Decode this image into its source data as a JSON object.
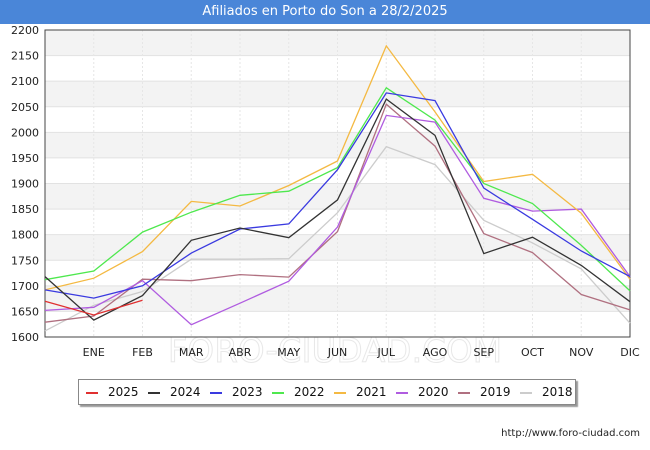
{
  "header": {
    "title": "Afiliados en Porto do Son a 28/2/2025"
  },
  "source": "http://www.foro-ciudad.com",
  "watermark": "FORO-CIUDAD.COM",
  "chart_data": {
    "type": "line",
    "title": "Afiliados en Porto do Son a 28/2/2025",
    "xlabel": "",
    "ylabel": "",
    "categories": [
      "",
      "ENE",
      "FEB",
      "MAR",
      "ABR",
      "MAY",
      "JUN",
      "JUL",
      "AGO",
      "SEP",
      "OCT",
      "NOV",
      "DIC"
    ],
    "ylim": [
      1600,
      2200
    ],
    "yticks": [
      1600,
      1650,
      1700,
      1750,
      1800,
      1850,
      1900,
      1950,
      2000,
      2050,
      2100,
      2150,
      2200
    ],
    "grid": true,
    "legend": "bottom",
    "series": [
      {
        "name": "2025",
        "color": "#e03030",
        "values": [
          1670,
          1643,
          1672,
          null,
          null,
          null,
          null,
          null,
          null,
          null,
          null,
          null,
          null
        ]
      },
      {
        "name": "2024",
        "color": "#333333",
        "values": [
          1718,
          1633,
          1681,
          1789,
          1813,
          1794,
          1868,
          2065,
          1994,
          1763,
          1795,
          1740,
          1669
        ]
      },
      {
        "name": "2023",
        "color": "#3a3ae0",
        "values": [
          1692,
          1676,
          1700,
          1764,
          1811,
          1821,
          1927,
          2077,
          2062,
          1891,
          1830,
          1768,
          1718
        ]
      },
      {
        "name": "2022",
        "color": "#4ee84e",
        "values": [
          1712,
          1729,
          1805,
          1844,
          1877,
          1885,
          1931,
          2087,
          2024,
          1900,
          1861,
          1779,
          1690
        ]
      },
      {
        "name": "2021",
        "color": "#f4b942",
        "values": [
          1692,
          1715,
          1767,
          1865,
          1856,
          1896,
          1944,
          2169,
          2040,
          1904,
          1918,
          1842,
          1713
        ]
      },
      {
        "name": "2020",
        "color": "#b05ce0",
        "values": [
          1652,
          1658,
          1710,
          1624,
          1666,
          1709,
          1815,
          2033,
          2020,
          1871,
          1846,
          1850,
          1718
        ]
      },
      {
        "name": "2019",
        "color": "#b07080",
        "values": [
          1629,
          1641,
          1713,
          1710,
          1722,
          1717,
          1806,
          2055,
          1973,
          1802,
          1765,
          1683,
          1653
        ]
      },
      {
        "name": "2018",
        "color": "#cccccc",
        "values": [
          1612,
          1662,
          1689,
          1752,
          1752,
          1753,
          1843,
          1972,
          1937,
          1828,
          1784,
          1733,
          1627
        ]
      }
    ]
  }
}
